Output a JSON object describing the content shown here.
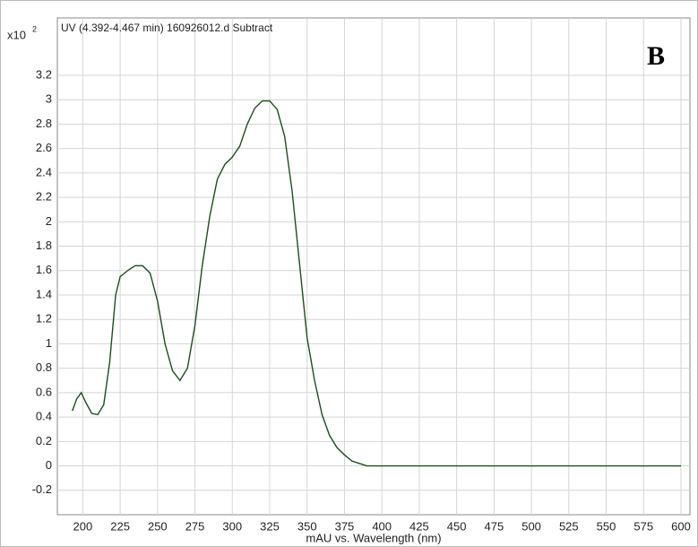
{
  "chart_data": {
    "type": "line",
    "title": "UV (4.392-4.467 min) 160926012.d  Subtract",
    "y_multiplier": "x10",
    "y_exponent": "2",
    "panel_label": "B",
    "x_label": "mAU vs. Wavelength (nm)",
    "grid": true,
    "color": "#1e4d1e",
    "x": [
      193,
      196,
      199,
      202,
      206,
      210,
      214,
      218,
      222,
      225,
      230,
      235,
      240,
      245,
      250,
      255,
      260,
      265,
      270,
      275,
      280,
      285,
      290,
      295,
      300,
      305,
      310,
      315,
      320,
      325,
      330,
      335,
      340,
      345,
      350,
      355,
      360,
      365,
      370,
      375,
      380,
      385,
      390,
      400,
      600
    ],
    "values": [
      0.45,
      0.55,
      0.6,
      0.52,
      0.43,
      0.42,
      0.5,
      0.85,
      1.4,
      1.55,
      1.6,
      1.64,
      1.64,
      1.58,
      1.35,
      1.0,
      0.78,
      0.7,
      0.8,
      1.15,
      1.65,
      2.05,
      2.35,
      2.47,
      2.53,
      2.62,
      2.8,
      2.93,
      2.99,
      2.99,
      2.92,
      2.7,
      2.25,
      1.65,
      1.05,
      0.7,
      0.42,
      0.25,
      0.15,
      0.09,
      0.04,
      0.02,
      0.0,
      0.0,
      0.0
    ],
    "xlim": [
      183,
      606
    ],
    "ylim": [
      -0.4,
      3.67
    ],
    "xticks": [
      200,
      225,
      250,
      275,
      300,
      325,
      350,
      375,
      400,
      425,
      450,
      475,
      500,
      525,
      550,
      575,
      600
    ],
    "yticks": [
      -0.2,
      0,
      0.2,
      0.4,
      0.6,
      0.8,
      1,
      1.2,
      1.4,
      1.6,
      1.8,
      2,
      2.2,
      2.4,
      2.6,
      2.8,
      3,
      3.2
    ]
  }
}
